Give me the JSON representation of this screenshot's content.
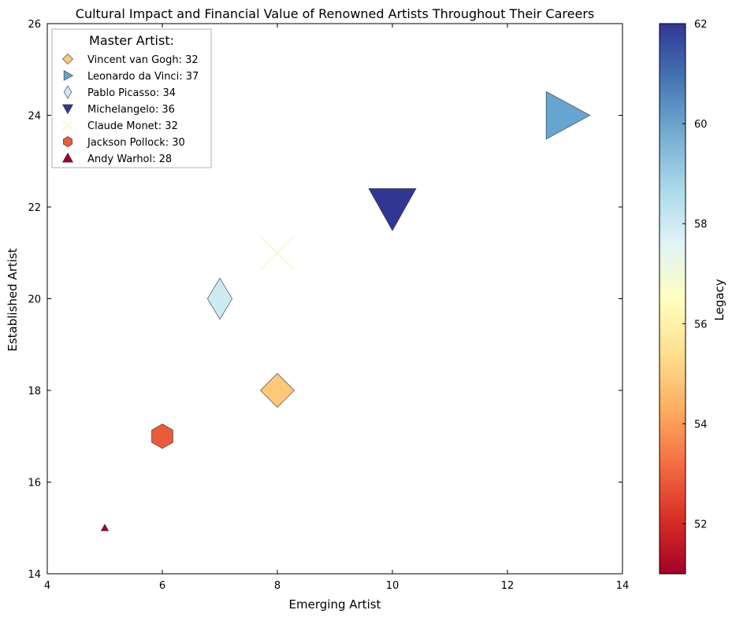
{
  "chart_data": {
    "type": "scatter",
    "title": "Cultural Impact and Financial Value of Renowned Artists Throughout Their Careers",
    "xlabel": "Emerging Artist",
    "ylabel": "Established Artist",
    "xlim": [
      4,
      14
    ],
    "ylim": [
      14,
      26
    ],
    "xticks": [
      4,
      6,
      8,
      10,
      12,
      14
    ],
    "yticks": [
      14,
      16,
      18,
      20,
      22,
      24,
      26
    ],
    "grid": false,
    "legend": {
      "title": "Master Artist:",
      "placement": "top-left"
    },
    "colorbar": {
      "label": "Legacy",
      "range": [
        51,
        62
      ],
      "ticks": [
        52,
        54,
        56,
        58,
        60,
        62
      ],
      "colormap": "RdYlBu"
    },
    "series": [
      {
        "name": "Vincent van Gogh",
        "label": "Vincent van Gogh: 32",
        "size_value": 32,
        "x": 8,
        "y": 18,
        "legacy": 55,
        "marker": "diamond",
        "color": "#fdc878"
      },
      {
        "name": "Leonardo da Vinci",
        "label": "Leonardo da Vinci: 37",
        "size_value": 37,
        "x": 13,
        "y": 24,
        "legacy": 60,
        "marker": "triangle-right",
        "color": "#65a5d0"
      },
      {
        "name": "Pablo Picasso",
        "label": "Pablo Picasso: 34",
        "size_value": 34,
        "x": 7,
        "y": 20,
        "legacy": 58,
        "marker": "thin-diamond",
        "color": "#cde9f2"
      },
      {
        "name": "Michelangelo",
        "label": "Michelangelo: 36",
        "size_value": 36,
        "x": 10,
        "y": 22,
        "legacy": 62,
        "marker": "triangle-down",
        "color": "#313695"
      },
      {
        "name": "Claude Monet",
        "label": "Claude Monet: 32",
        "size_value": 32,
        "x": 8,
        "y": 21,
        "legacy": 57,
        "marker": "x",
        "color": "#f7f7cc"
      },
      {
        "name": "Jackson Pollock",
        "label": "Jackson Pollock: 30",
        "size_value": 30,
        "x": 6,
        "y": 17,
        "legacy": 53,
        "marker": "hexagon",
        "color": "#ea5b3b"
      },
      {
        "name": "Andy Warhol",
        "label": "Andy Warhol: 28",
        "size_value": 28,
        "x": 5,
        "y": 15,
        "legacy": 51,
        "marker": "triangle-up",
        "color": "#a50026"
      }
    ]
  }
}
